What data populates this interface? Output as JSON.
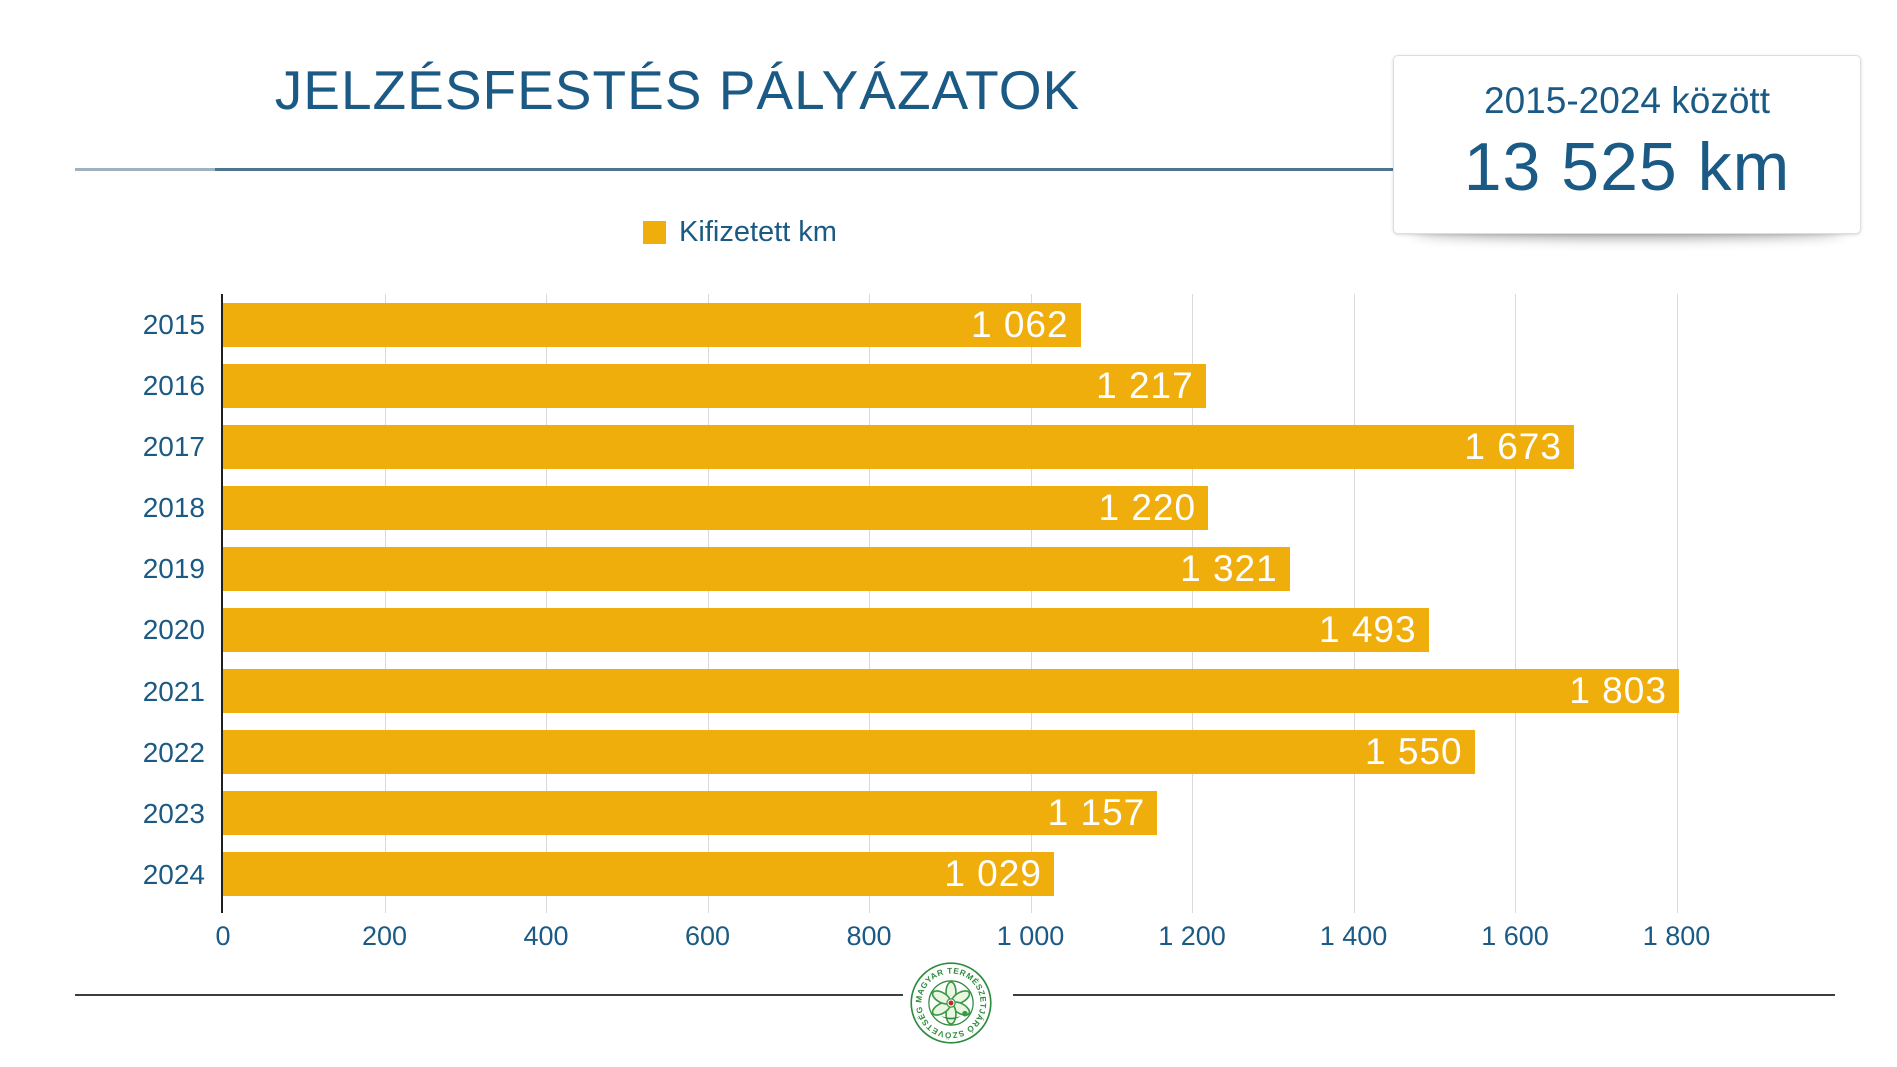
{
  "title": "JELZÉSFESTÉS PÁLYÁZATOK",
  "callout": {
    "line1": "2015-2024 között",
    "line2": "13 525 km"
  },
  "legend": {
    "label": "Kifizetett km",
    "swatch_color": "#F0AE0D"
  },
  "chart_data": {
    "type": "bar",
    "orientation": "horizontal",
    "title": "JELZÉSFESTÉS PÁLYÁZATOK",
    "series_name": "Kifizetett km",
    "categories": [
      "2015",
      "2016",
      "2017",
      "2018",
      "2019",
      "2020",
      "2021",
      "2022",
      "2023",
      "2024"
    ],
    "values": [
      1062,
      1217,
      1673,
      1220,
      1321,
      1493,
      1803,
      1550,
      1157,
      1029
    ],
    "value_labels": [
      "1 062",
      "1 217",
      "1 673",
      "1 220",
      "1 321",
      "1 493",
      "1 803",
      "1 550",
      "1 157",
      "1 029"
    ],
    "xlim": [
      0,
      1800
    ],
    "x_ticks": [
      "0",
      "200",
      "400",
      "600",
      "800",
      "1 000",
      "1 200",
      "1 400",
      "1 600",
      "1 800"
    ],
    "bar_color": "#F0AE0D",
    "grid": true,
    "legend_position": "top-center",
    "total_label": "13 525 km",
    "total_value": 13525
  },
  "footer": {
    "logo_text": "MAGYAR TERMÉSZETJÁRÓ SZÖVETSÉG"
  },
  "colors": {
    "text_blue": "#1B5A84",
    "bar_yellow": "#F0AE0D",
    "gridline": "#D9D9D9",
    "footer_line": "#3D3D3D"
  }
}
